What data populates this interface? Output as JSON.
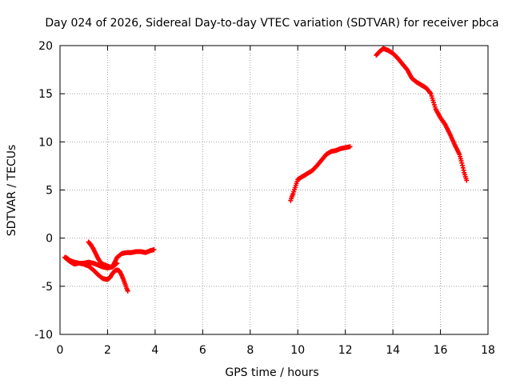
{
  "chart_data": {
    "type": "scatter",
    "title": "Day 024 of 2026, Sidereal Day-to-day VTEC variation (SDTVAR) for receiver pbca",
    "xlabel": "GPS time / hours",
    "ylabel": "SDTVAR / TECUs",
    "xlim": [
      0,
      18
    ],
    "ylim": [
      -10,
      20
    ],
    "xticks": [
      "0",
      "2",
      "4",
      "6",
      "8",
      "10",
      "12",
      "14",
      "16",
      "18"
    ],
    "yticks": [
      "-10",
      "-5",
      "0",
      "5",
      "10",
      "15",
      "20"
    ],
    "grid": true,
    "marker": "+",
    "color": "#ff0000",
    "series": [
      {
        "name": "arc-1",
        "x": [
          0.2,
          0.4,
          0.6,
          0.8,
          1.0,
          1.2,
          1.4,
          1.6,
          1.8,
          2.0,
          2.2,
          2.4,
          2.6,
          2.8,
          3.0,
          3.2,
          3.4,
          3.6,
          3.8,
          3.95
        ],
        "y": [
          -2.0,
          -2.4,
          -2.7,
          -2.6,
          -2.6,
          -2.5,
          -2.6,
          -2.8,
          -3.0,
          -3.1,
          -3.0,
          -2.0,
          -1.6,
          -1.5,
          -1.5,
          -1.4,
          -1.4,
          -1.5,
          -1.3,
          -1.2
        ]
      },
      {
        "name": "arc-2",
        "x": [
          0.25,
          0.4,
          0.6,
          0.8,
          1.0,
          1.2,
          1.4,
          1.6,
          1.8,
          2.0,
          2.1,
          2.2,
          2.3,
          2.4,
          2.5,
          2.6,
          2.7,
          2.8,
          2.85
        ],
        "y": [
          -2.0,
          -2.3,
          -2.5,
          -2.6,
          -2.7,
          -2.9,
          -3.3,
          -3.8,
          -4.2,
          -4.3,
          -4.1,
          -3.7,
          -3.4,
          -3.3,
          -3.4,
          -3.9,
          -4.5,
          -5.2,
          -5.5
        ]
      },
      {
        "name": "arc-3",
        "x": [
          1.2,
          1.3,
          1.4,
          1.5,
          1.6,
          1.7,
          1.8,
          1.9,
          2.0,
          2.1,
          2.2,
          2.3,
          2.4
        ],
        "y": [
          -0.4,
          -0.7,
          -1.1,
          -1.6,
          -2.1,
          -2.5,
          -2.7,
          -2.8,
          -2.9,
          -3.0,
          -3.0,
          -2.8,
          -2.6
        ]
      },
      {
        "name": "arc-4",
        "x": [
          9.7,
          9.75,
          9.8,
          10.0,
          10.2,
          10.4,
          10.6,
          10.8,
          11.0,
          11.2,
          11.4,
          11.6,
          11.8,
          12.0,
          12.2
        ],
        "y": [
          3.9,
          4.3,
          4.6,
          6.1,
          6.4,
          6.7,
          7.0,
          7.5,
          8.1,
          8.7,
          9.0,
          9.1,
          9.3,
          9.4,
          9.5
        ]
      },
      {
        "name": "arc-5",
        "x": [
          13.3,
          13.45,
          13.6,
          13.8,
          14.0,
          14.2,
          14.4,
          14.6,
          14.8,
          15.0,
          15.2,
          15.4,
          15.6,
          15.8,
          16.0,
          16.2,
          16.4,
          16.6,
          16.8,
          16.9,
          17.0,
          17.1
        ],
        "y": [
          19.0,
          19.4,
          19.7,
          19.5,
          19.2,
          18.7,
          18.1,
          17.5,
          16.6,
          16.2,
          15.9,
          15.6,
          15.0,
          13.4,
          12.5,
          11.8,
          10.8,
          9.7,
          8.7,
          7.8,
          6.8,
          6.0
        ]
      }
    ]
  }
}
